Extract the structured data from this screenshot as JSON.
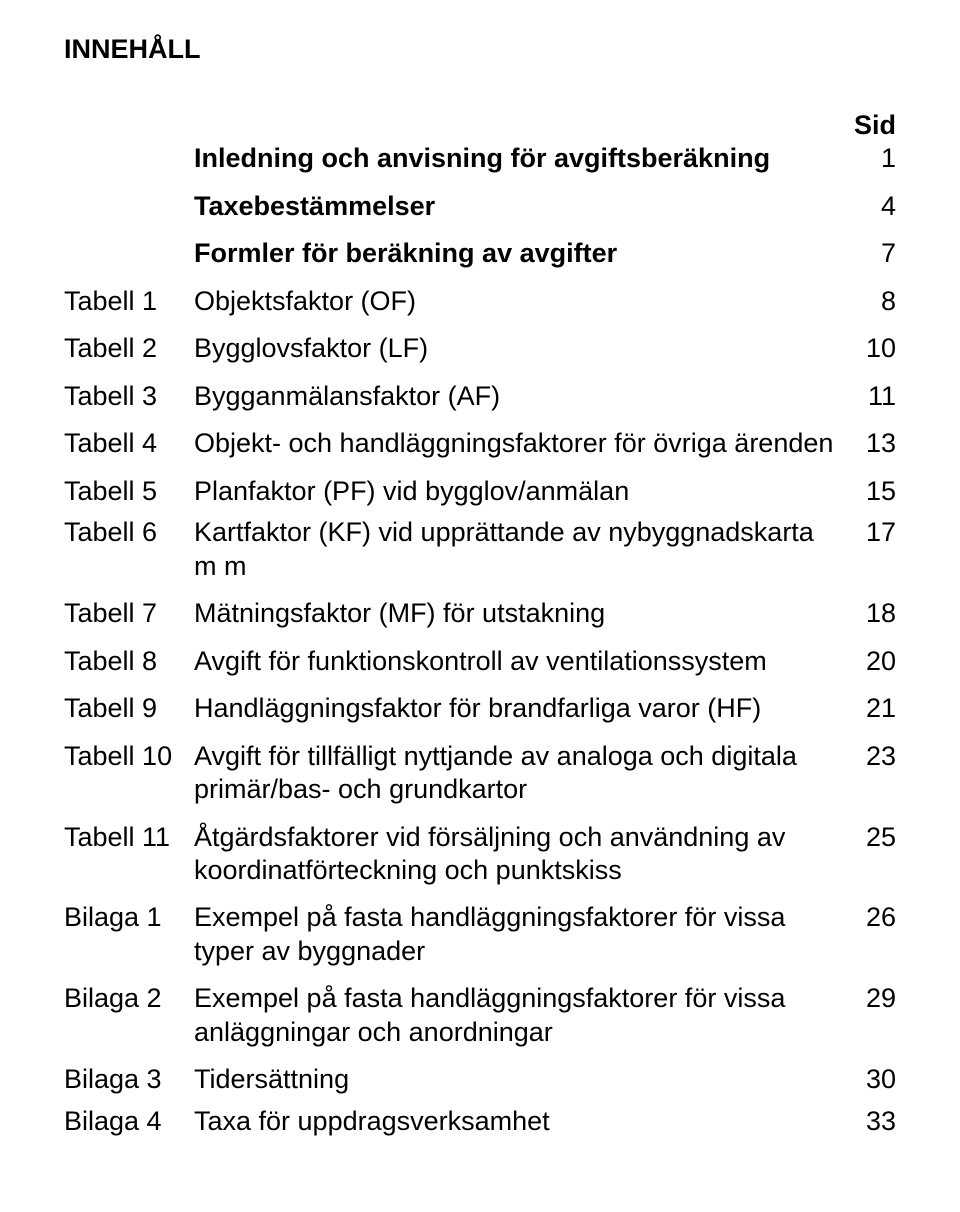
{
  "heading": "INNEHÅLL",
  "sid_label": "Sid",
  "rows": [
    {
      "label": "",
      "desc": "Inledning och anvisning för avgiftsberäkning",
      "page": "1",
      "bold": true,
      "spacer": "large"
    },
    {
      "label": "",
      "desc": "Taxebestämmelser",
      "page": "4",
      "bold": true,
      "spacer": "large"
    },
    {
      "label": "",
      "desc": "Formler för beräkning av avgifter",
      "page": "7",
      "bold": true,
      "spacer": "large"
    },
    {
      "label": "Tabell 1",
      "desc": "Objektsfaktor (OF)",
      "page": "8",
      "bold": false,
      "spacer": "large"
    },
    {
      "label": "Tabell 2",
      "desc": "Bygglovsfaktor (LF)",
      "page": "10",
      "bold": false,
      "spacer": "large"
    },
    {
      "label": "Tabell 3",
      "desc": "Bygganmälansfaktor (AF)",
      "page": "11",
      "bold": false,
      "spacer": "large"
    },
    {
      "label": "Tabell 4",
      "desc": "Objekt- och handläggningsfaktorer för övriga ärenden",
      "page": "13",
      "bold": false,
      "spacer": "large"
    },
    {
      "label": "Tabell 5",
      "desc": "Planfaktor (PF) vid bygglov/anmälan",
      "page": "15",
      "bold": false,
      "spacer": "small"
    },
    {
      "label": "Tabell 6",
      "desc": "Kartfaktor (KF) vid upprättande av nybyggnads­karta m m",
      "page": "17",
      "bold": false,
      "spacer": "large"
    },
    {
      "label": "Tabell 7",
      "desc": "Mätningsfaktor (MF) för utstakning",
      "page": "18",
      "bold": false,
      "spacer": "large"
    },
    {
      "label": "Tabell 8",
      "desc": "Avgift för funktionskontroll av ventilationssystem",
      "page": "20",
      "bold": false,
      "spacer": "large"
    },
    {
      "label": "Tabell 9",
      "desc": "Handläggningsfaktor för brandfarliga varor (HF)",
      "page": "21",
      "bold": false,
      "spacer": "large"
    },
    {
      "label": "Tabell 10",
      "desc": "Avgift för tillfälligt nyttjande av analoga och digitala primär/bas- och grundkartor",
      "page": "23",
      "bold": false,
      "spacer": "large"
    },
    {
      "label": "Tabell 11",
      "desc": "Åtgärdsfaktorer vid försäljning och användning av koordinatförteckning och punktskiss",
      "page": "25",
      "bold": false,
      "spacer": "large"
    },
    {
      "label": "Bilaga 1",
      "desc": "Exempel på fasta handläggningsfaktorer för vissa typer av byggnader",
      "page": "26",
      "bold": false,
      "spacer": "large"
    },
    {
      "label": "Bilaga 2",
      "desc": "Exempel på fasta handläggningsfaktorer för vissa anläggningar och anordningar",
      "page": "29",
      "bold": false,
      "spacer": "large"
    },
    {
      "label": "Bilaga 3",
      "desc": "Tidersättning",
      "page": "30",
      "bold": false,
      "spacer": "small"
    },
    {
      "label": "Bilaga 4",
      "desc": "Taxa för uppdragsverksamhet",
      "page": "33",
      "bold": false,
      "spacer": "none"
    }
  ]
}
